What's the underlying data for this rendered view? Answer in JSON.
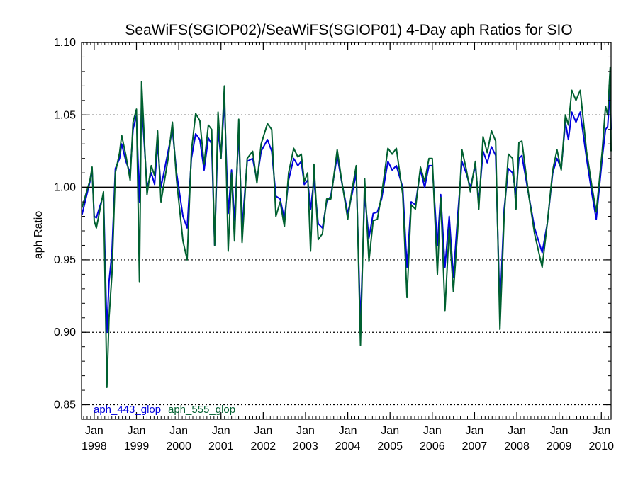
{
  "chart_data": {
    "type": "line",
    "title": "SeaWiFS(SGIOP02)/SeaWiFS(SGIOP01) 4-Day aph Ratios for SIO",
    "xlabel": "",
    "ylabel": "aph Ratio",
    "ylim": [
      0.84,
      1.1
    ],
    "xlim": [
      1997.7,
      2010.23
    ],
    "y_ticks": [
      "0.85",
      "0.90",
      "0.95",
      "1.00",
      "1.05",
      "1.10"
    ],
    "x_ticks": [
      {
        "top": "Jan",
        "bottom": "1998",
        "x": 1998.0
      },
      {
        "top": "Jan",
        "bottom": "1999",
        "x": 1999.0
      },
      {
        "top": "Jan",
        "bottom": "2000",
        "x": 2000.0
      },
      {
        "top": "Jan",
        "bottom": "2001",
        "x": 2001.0
      },
      {
        "top": "Jan",
        "bottom": "2002",
        "x": 2002.0
      },
      {
        "top": "Jan",
        "bottom": "2003",
        "x": 2003.0
      },
      {
        "top": "Jan",
        "bottom": "2004",
        "x": 2004.0
      },
      {
        "top": "Jan",
        "bottom": "2005",
        "x": 2005.0
      },
      {
        "top": "Jan",
        "bottom": "2006",
        "x": 2006.0
      },
      {
        "top": "Jan",
        "bottom": "2007",
        "x": 2007.0
      },
      {
        "top": "Jan",
        "bottom": "2008",
        "x": 2008.0
      },
      {
        "top": "Jan",
        "bottom": "2009",
        "x": 2009.0
      },
      {
        "top": "Jan",
        "bottom": "2010",
        "x": 2010.0
      }
    ],
    "grid": "horizontal dotted",
    "reference_line": 1.0,
    "legend_position": "bottom-left",
    "series": [
      {
        "name": "aph_443_glop",
        "color": "#0000dd",
        "points": [
          [
            1997.71,
            0.981
          ],
          [
            1997.9,
            1.004
          ],
          [
            1997.95,
            1.012
          ],
          [
            1998.0,
            0.98
          ],
          [
            1998.05,
            0.979
          ],
          [
            1998.22,
            0.995
          ],
          [
            1998.3,
            0.9
          ],
          [
            1998.35,
            0.935
          ],
          [
            1998.42,
            0.955
          ],
          [
            1998.5,
            1.013
          ],
          [
            1998.6,
            1.02
          ],
          [
            1998.65,
            1.03
          ],
          [
            1998.75,
            1.018
          ],
          [
            1998.85,
            1.01
          ],
          [
            1998.92,
            1.04
          ],
          [
            1999.0,
            1.05
          ],
          [
            1999.07,
            0.99
          ],
          [
            1999.12,
            1.06
          ],
          [
            1999.25,
            1.0
          ],
          [
            1999.35,
            1.01
          ],
          [
            1999.43,
            1.002
          ],
          [
            1999.5,
            1.03
          ],
          [
            1999.58,
            1.0
          ],
          [
            1999.75,
            1.025
          ],
          [
            1999.85,
            1.04
          ],
          [
            1999.95,
            1.01
          ],
          [
            2000.1,
            0.98
          ],
          [
            2000.2,
            0.972
          ],
          [
            2000.3,
            1.02
          ],
          [
            2000.4,
            1.037
          ],
          [
            2000.5,
            1.033
          ],
          [
            2000.6,
            1.012
          ],
          [
            2000.7,
            1.034
          ],
          [
            2000.78,
            1.03
          ],
          [
            2000.85,
            0.96
          ],
          [
            2000.93,
            1.04
          ],
          [
            2001.0,
            1.02
          ],
          [
            2001.08,
            1.06
          ],
          [
            2001.17,
            0.982
          ],
          [
            2001.25,
            1.012
          ],
          [
            2001.32,
            0.977
          ],
          [
            2001.42,
            1.038
          ],
          [
            2001.5,
            0.972
          ],
          [
            2001.62,
            1.018
          ],
          [
            2001.75,
            1.02
          ],
          [
            2001.85,
            1.005
          ],
          [
            2001.95,
            1.025
          ],
          [
            2002.1,
            1.033
          ],
          [
            2002.2,
            1.025
          ],
          [
            2002.3,
            0.994
          ],
          [
            2002.4,
            0.992
          ],
          [
            2002.5,
            0.978
          ],
          [
            2002.6,
            1.005
          ],
          [
            2002.72,
            1.02
          ],
          [
            2002.82,
            1.015
          ],
          [
            2002.9,
            1.018
          ],
          [
            2002.97,
            1.002
          ],
          [
            2003.05,
            1.005
          ],
          [
            2003.12,
            0.985
          ],
          [
            2003.2,
            1.005
          ],
          [
            2003.3,
            0.975
          ],
          [
            2003.4,
            0.972
          ],
          [
            2003.5,
            0.99
          ],
          [
            2003.6,
            0.994
          ],
          [
            2003.75,
            1.022
          ],
          [
            2003.85,
            1.005
          ],
          [
            2004.0,
            0.982
          ],
          [
            2004.1,
            0.995
          ],
          [
            2004.2,
            1.01
          ],
          [
            2004.3,
            0.905
          ],
          [
            2004.4,
            0.995
          ],
          [
            2004.5,
            0.965
          ],
          [
            2004.6,
            0.982
          ],
          [
            2004.7,
            0.983
          ],
          [
            2004.8,
            0.992
          ],
          [
            2004.95,
            1.018
          ],
          [
            2005.05,
            1.012
          ],
          [
            2005.15,
            1.015
          ],
          [
            2005.3,
            1.0
          ],
          [
            2005.4,
            0.945
          ],
          [
            2005.5,
            0.99
          ],
          [
            2005.6,
            0.988
          ],
          [
            2005.72,
            1.012
          ],
          [
            2005.82,
            1.0
          ],
          [
            2005.92,
            1.015
          ],
          [
            2006.0,
            1.015
          ],
          [
            2006.12,
            0.96
          ],
          [
            2006.2,
            0.995
          ],
          [
            2006.3,
            0.945
          ],
          [
            2006.4,
            0.98
          ],
          [
            2006.5,
            0.938
          ],
          [
            2006.6,
            0.98
          ],
          [
            2006.7,
            1.018
          ],
          [
            2006.8,
            1.01
          ],
          [
            2006.9,
            1.0
          ],
          [
            2007.02,
            1.015
          ],
          [
            2007.1,
            0.99
          ],
          [
            2007.2,
            1.025
          ],
          [
            2007.3,
            1.017
          ],
          [
            2007.4,
            1.028
          ],
          [
            2007.5,
            1.022
          ],
          [
            2007.6,
            0.915
          ],
          [
            2007.7,
            0.985
          ],
          [
            2007.8,
            1.013
          ],
          [
            2007.9,
            1.01
          ],
          [
            2007.98,
            0.995
          ],
          [
            2008.05,
            1.02
          ],
          [
            2008.12,
            1.022
          ],
          [
            2008.28,
            0.995
          ],
          [
            2008.42,
            0.972
          ],
          [
            2008.6,
            0.955
          ],
          [
            2008.72,
            0.975
          ],
          [
            2008.85,
            1.01
          ],
          [
            2008.95,
            1.02
          ],
          [
            2009.05,
            1.013
          ],
          [
            2009.15,
            1.045
          ],
          [
            2009.22,
            1.033
          ],
          [
            2009.3,
            1.052
          ],
          [
            2009.4,
            1.045
          ],
          [
            2009.5,
            1.052
          ],
          [
            2009.65,
            1.02
          ],
          [
            2009.78,
            0.995
          ],
          [
            2009.88,
            0.978
          ],
          [
            2010.02,
            1.02
          ],
          [
            2010.1,
            1.04
          ],
          [
            2010.15,
            1.042
          ],
          [
            2010.21,
            1.068
          ],
          [
            2010.23,
            1.04
          ]
        ]
      },
      {
        "name": "aph_555_glop",
        "color": "#006030",
        "points": [
          [
            1997.71,
            0.986
          ],
          [
            1997.9,
            1.005
          ],
          [
            1997.95,
            1.014
          ],
          [
            1998.0,
            0.977
          ],
          [
            1998.05,
            0.972
          ],
          [
            1998.22,
            0.997
          ],
          [
            1998.3,
            0.862
          ],
          [
            1998.35,
            0.91
          ],
          [
            1998.42,
            0.94
          ],
          [
            1998.5,
            1.01
          ],
          [
            1998.6,
            1.024
          ],
          [
            1998.65,
            1.036
          ],
          [
            1998.75,
            1.022
          ],
          [
            1998.85,
            1.005
          ],
          [
            1998.92,
            1.045
          ],
          [
            1999.0,
            1.054
          ],
          [
            1999.07,
            0.935
          ],
          [
            1999.12,
            1.073
          ],
          [
            1999.25,
            0.995
          ],
          [
            1999.35,
            1.015
          ],
          [
            1999.43,
            1.008
          ],
          [
            1999.5,
            1.039
          ],
          [
            1999.58,
            0.99
          ],
          [
            1999.75,
            1.02
          ],
          [
            1999.85,
            1.045
          ],
          [
            1999.95,
            1.005
          ],
          [
            2000.1,
            0.963
          ],
          [
            2000.2,
            0.95
          ],
          [
            2000.3,
            1.025
          ],
          [
            2000.4,
            1.051
          ],
          [
            2000.5,
            1.046
          ],
          [
            2000.6,
            1.016
          ],
          [
            2000.7,
            1.043
          ],
          [
            2000.78,
            1.04
          ],
          [
            2000.85,
            0.96
          ],
          [
            2000.93,
            1.052
          ],
          [
            2001.0,
            1.02
          ],
          [
            2001.08,
            1.07
          ],
          [
            2001.17,
            0.956
          ],
          [
            2001.25,
            1.01
          ],
          [
            2001.32,
            0.963
          ],
          [
            2001.42,
            1.047
          ],
          [
            2001.5,
            0.962
          ],
          [
            2001.62,
            1.02
          ],
          [
            2001.75,
            1.025
          ],
          [
            2001.85,
            1.003
          ],
          [
            2001.95,
            1.03
          ],
          [
            2002.1,
            1.044
          ],
          [
            2002.2,
            1.04
          ],
          [
            2002.3,
            0.98
          ],
          [
            2002.4,
            0.99
          ],
          [
            2002.5,
            0.973
          ],
          [
            2002.6,
            1.01
          ],
          [
            2002.72,
            1.027
          ],
          [
            2002.82,
            1.021
          ],
          [
            2002.9,
            1.023
          ],
          [
            2002.97,
            1.004
          ],
          [
            2003.05,
            1.01
          ],
          [
            2003.12,
            0.956
          ],
          [
            2003.2,
            1.016
          ],
          [
            2003.3,
            0.964
          ],
          [
            2003.4,
            0.968
          ],
          [
            2003.5,
            0.992
          ],
          [
            2003.6,
            0.992
          ],
          [
            2003.75,
            1.026
          ],
          [
            2003.85,
            1.006
          ],
          [
            2004.0,
            0.978
          ],
          [
            2004.1,
            0.998
          ],
          [
            2004.2,
            1.015
          ],
          [
            2004.3,
            0.891
          ],
          [
            2004.4,
            1.006
          ],
          [
            2004.5,
            0.949
          ],
          [
            2004.6,
            0.977
          ],
          [
            2004.7,
            0.978
          ],
          [
            2004.8,
            0.995
          ],
          [
            2004.95,
            1.027
          ],
          [
            2005.05,
            1.023
          ],
          [
            2005.15,
            1.027
          ],
          [
            2005.3,
            0.995
          ],
          [
            2005.4,
            0.924
          ],
          [
            2005.5,
            0.988
          ],
          [
            2005.6,
            0.985
          ],
          [
            2005.72,
            1.014
          ],
          [
            2005.82,
            1.004
          ],
          [
            2005.92,
            1.02
          ],
          [
            2006.0,
            1.02
          ],
          [
            2006.12,
            0.94
          ],
          [
            2006.2,
            0.993
          ],
          [
            2006.3,
            0.915
          ],
          [
            2006.4,
            0.972
          ],
          [
            2006.5,
            0.928
          ],
          [
            2006.6,
            0.97
          ],
          [
            2006.7,
            1.026
          ],
          [
            2006.8,
            1.013
          ],
          [
            2006.9,
            0.997
          ],
          [
            2007.02,
            1.018
          ],
          [
            2007.1,
            0.985
          ],
          [
            2007.2,
            1.035
          ],
          [
            2007.3,
            1.024
          ],
          [
            2007.4,
            1.039
          ],
          [
            2007.5,
            1.032
          ],
          [
            2007.6,
            0.902
          ],
          [
            2007.7,
            0.98
          ],
          [
            2007.8,
            1.023
          ],
          [
            2007.9,
            1.02
          ],
          [
            2007.98,
            0.985
          ],
          [
            2008.05,
            1.031
          ],
          [
            2008.12,
            1.032
          ],
          [
            2008.28,
            0.995
          ],
          [
            2008.42,
            0.968
          ],
          [
            2008.6,
            0.945
          ],
          [
            2008.72,
            0.975
          ],
          [
            2008.85,
            1.012
          ],
          [
            2008.95,
            1.026
          ],
          [
            2009.05,
            1.012
          ],
          [
            2009.15,
            1.05
          ],
          [
            2009.22,
            1.043
          ],
          [
            2009.3,
            1.067
          ],
          [
            2009.4,
            1.06
          ],
          [
            2009.5,
            1.067
          ],
          [
            2009.65,
            1.025
          ],
          [
            2009.78,
            1.0
          ],
          [
            2009.88,
            0.983
          ],
          [
            2010.02,
            1.025
          ],
          [
            2010.1,
            1.056
          ],
          [
            2010.15,
            1.05
          ],
          [
            2010.21,
            1.083
          ],
          [
            2010.23,
            1.025
          ]
        ]
      }
    ]
  }
}
